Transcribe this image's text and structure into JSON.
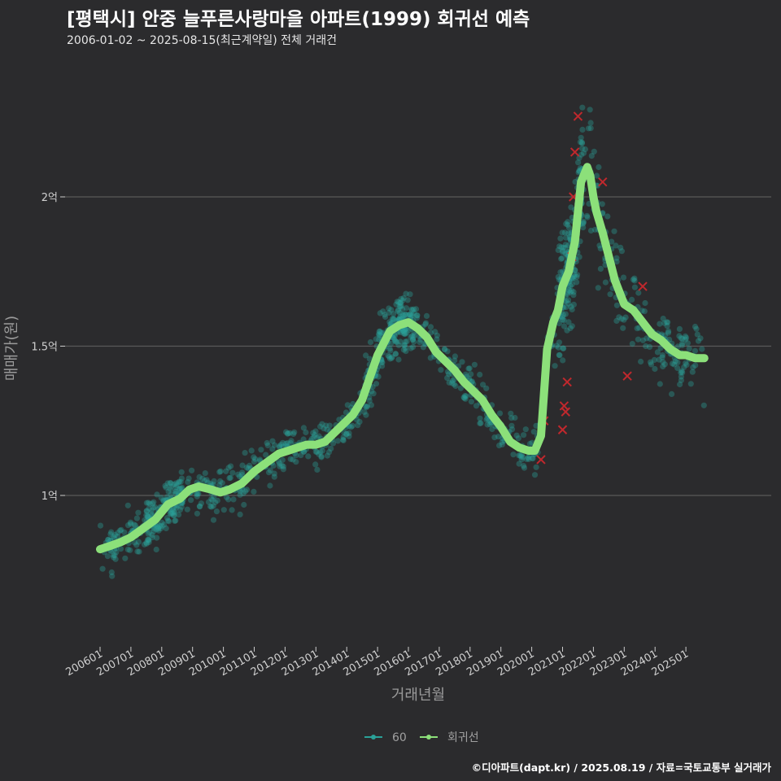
{
  "header": {
    "title": "[평택시] 안중 늘푸른사랑마을 아파트(1999) 회귀선 예측",
    "subtitle": "2006-01-02 ~ 2025-08-15(최근계약일) 전체 거래건"
  },
  "footer": {
    "caption": "©디아파트(dapt.kr) / 2025.08.19 / 자료=국토교통부 실거래가"
  },
  "colors": {
    "background": "#2b2b2d",
    "gridline": "#5a5a5a",
    "scatter": "#2aa198",
    "regression": "#8ce07a",
    "outlier": "#c0282d"
  },
  "chart_data": {
    "type": "scatter",
    "title": "[평택시] 안중 늘푸른사랑마을 아파트(1999) 회귀선 예측",
    "xlabel": "거래년월",
    "ylabel": "매매가(원)",
    "xlim": [
      2006.0,
      2025.8
    ],
    "ylim": [
      0.5,
      2.5
    ],
    "y_unit": "억",
    "y_ticks": [
      {
        "value": 1.0,
        "label": "1억"
      },
      {
        "value": 1.5,
        "label": "1.5억"
      },
      {
        "value": 2.0,
        "label": "2억"
      }
    ],
    "x_ticks": [
      {
        "value": 2006.0,
        "label": "200601"
      },
      {
        "value": 2007.0,
        "label": "200701"
      },
      {
        "value": 2008.0,
        "label": "200801"
      },
      {
        "value": 2009.0,
        "label": "200901"
      },
      {
        "value": 2010.0,
        "label": "201001"
      },
      {
        "value": 2011.0,
        "label": "201101"
      },
      {
        "value": 2012.0,
        "label": "201201"
      },
      {
        "value": 2013.0,
        "label": "201301"
      },
      {
        "value": 2014.0,
        "label": "201401"
      },
      {
        "value": 2015.0,
        "label": "201501"
      },
      {
        "value": 2016.0,
        "label": "201601"
      },
      {
        "value": 2017.0,
        "label": "201701"
      },
      {
        "value": 2018.0,
        "label": "201801"
      },
      {
        "value": 2019.0,
        "label": "201901"
      },
      {
        "value": 2020.0,
        "label": "202001"
      },
      {
        "value": 2021.0,
        "label": "202101"
      },
      {
        "value": 2022.0,
        "label": "202201"
      },
      {
        "value": 2023.0,
        "label": "202301"
      },
      {
        "value": 2024.0,
        "label": "202401"
      },
      {
        "value": 2025.0,
        "label": "202501"
      }
    ],
    "legend": {
      "position": "bottom",
      "items": [
        {
          "label": "60",
          "kind": "scatter"
        },
        {
          "label": "회귀선",
          "kind": "line"
        }
      ]
    },
    "series": [
      {
        "name": "회귀선",
        "x": [
          2006.0,
          2006.3,
          2006.7,
          2007.0,
          2007.4,
          2007.8,
          2008.2,
          2008.6,
          2008.9,
          2009.2,
          2009.6,
          2009.9,
          2010.2,
          2010.6,
          2011.0,
          2011.4,
          2011.8,
          2012.1,
          2012.4,
          2012.7,
          2013.0,
          2013.3,
          2013.6,
          2013.9,
          2014.2,
          2014.5,
          2014.7,
          2015.0,
          2015.4,
          2015.7,
          2016.0,
          2016.3,
          2016.6,
          2016.9,
          2017.2,
          2017.5,
          2017.8,
          2018.1,
          2018.4,
          2018.7,
          2019.0,
          2019.3,
          2019.6,
          2019.9,
          2020.1,
          2020.3,
          2020.5,
          2020.7,
          2020.85,
          2021.0,
          2021.2,
          2021.4,
          2021.6,
          2021.8,
          2021.9,
          2022.0,
          2022.1,
          2022.3,
          2022.5,
          2022.7,
          2022.85,
          2023.0,
          2023.3,
          2023.6,
          2023.9,
          2024.2,
          2024.5,
          2024.8,
          2025.0,
          2025.3,
          2025.6
        ],
        "values": [
          0.82,
          0.83,
          0.845,
          0.86,
          0.89,
          0.92,
          0.97,
          0.99,
          1.02,
          1.03,
          1.02,
          1.01,
          1.02,
          1.04,
          1.08,
          1.11,
          1.14,
          1.15,
          1.16,
          1.17,
          1.17,
          1.18,
          1.21,
          1.24,
          1.27,
          1.32,
          1.38,
          1.47,
          1.55,
          1.57,
          1.58,
          1.56,
          1.53,
          1.48,
          1.45,
          1.42,
          1.38,
          1.35,
          1.32,
          1.27,
          1.23,
          1.18,
          1.16,
          1.15,
          1.15,
          1.2,
          1.49,
          1.58,
          1.62,
          1.7,
          1.75,
          1.85,
          2.05,
          2.1,
          2.07,
          2.0,
          1.95,
          1.88,
          1.8,
          1.72,
          1.68,
          1.64,
          1.62,
          1.58,
          1.54,
          1.52,
          1.49,
          1.47,
          1.47,
          1.46,
          1.46
        ]
      }
    ]
  }
}
